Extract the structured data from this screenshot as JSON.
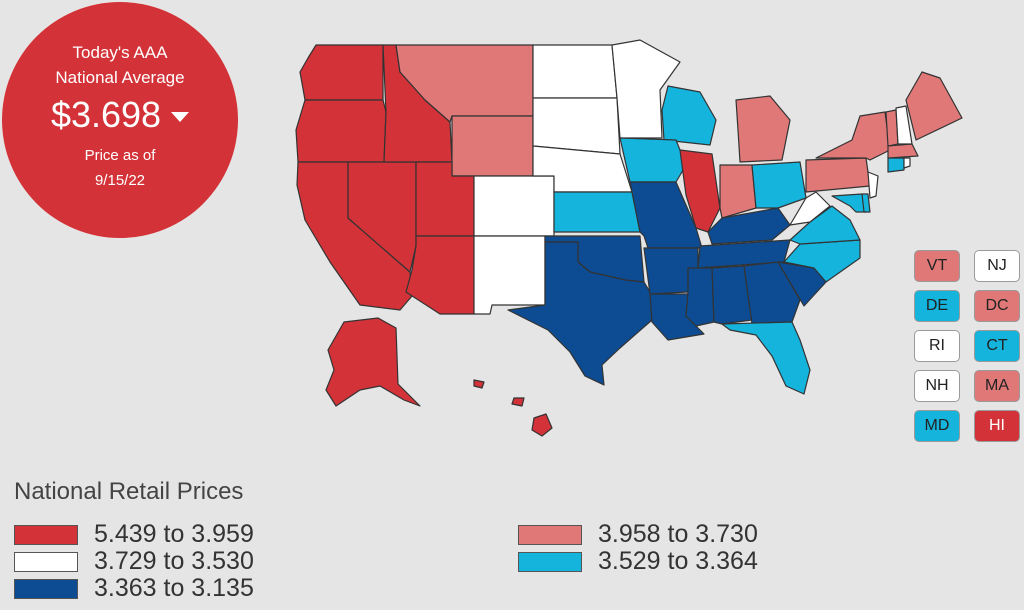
{
  "badge": {
    "line1": "Today's AAA",
    "line2": "National Average",
    "price": "$3.698",
    "trend_icon": "down-arrow-icon",
    "price_as_of_label": "Price as of",
    "date": "9/15/22"
  },
  "colors": {
    "tier1": "#d33338",
    "tier2": "#e07878",
    "tier3": "#ffffff",
    "tier4": "#14b4dd",
    "tier5": "#0d4c92"
  },
  "states": [
    {
      "id": "WA",
      "tier": "tier1"
    },
    {
      "id": "OR",
      "tier": "tier1"
    },
    {
      "id": "CA",
      "tier": "tier1"
    },
    {
      "id": "NV",
      "tier": "tier1"
    },
    {
      "id": "ID",
      "tier": "tier1"
    },
    {
      "id": "UT",
      "tier": "tier1"
    },
    {
      "id": "AZ",
      "tier": "tier1"
    },
    {
      "id": "IL",
      "tier": "tier1"
    },
    {
      "id": "AK",
      "tier": "tier1"
    },
    {
      "id": "HI",
      "tier": "tier1"
    },
    {
      "id": "MT",
      "tier": "tier2"
    },
    {
      "id": "WY",
      "tier": "tier2"
    },
    {
      "id": "MI",
      "tier": "tier2"
    },
    {
      "id": "IN",
      "tier": "tier2"
    },
    {
      "id": "NY",
      "tier": "tier2"
    },
    {
      "id": "PA",
      "tier": "tier2"
    },
    {
      "id": "ME",
      "tier": "tier2"
    },
    {
      "id": "VT",
      "tier": "tier2"
    },
    {
      "id": "MA",
      "tier": "tier2"
    },
    {
      "id": "DC",
      "tier": "tier2"
    },
    {
      "id": "ND",
      "tier": "tier3"
    },
    {
      "id": "SD",
      "tier": "tier3"
    },
    {
      "id": "NE",
      "tier": "tier3"
    },
    {
      "id": "CO",
      "tier": "tier3"
    },
    {
      "id": "NM",
      "tier": "tier3"
    },
    {
      "id": "MN",
      "tier": "tier3"
    },
    {
      "id": "WV",
      "tier": "tier3"
    },
    {
      "id": "NH",
      "tier": "tier3"
    },
    {
      "id": "NJ",
      "tier": "tier3"
    },
    {
      "id": "RI",
      "tier": "tier3"
    },
    {
      "id": "WI",
      "tier": "tier4"
    },
    {
      "id": "IA",
      "tier": "tier4"
    },
    {
      "id": "KS",
      "tier": "tier4"
    },
    {
      "id": "OH",
      "tier": "tier4"
    },
    {
      "id": "VA",
      "tier": "tier4"
    },
    {
      "id": "NC",
      "tier": "tier4"
    },
    {
      "id": "FL",
      "tier": "tier4"
    },
    {
      "id": "DE",
      "tier": "tier4"
    },
    {
      "id": "MD",
      "tier": "tier4"
    },
    {
      "id": "CT",
      "tier": "tier4"
    },
    {
      "id": "TX",
      "tier": "tier5"
    },
    {
      "id": "OK",
      "tier": "tier5"
    },
    {
      "id": "MO",
      "tier": "tier5"
    },
    {
      "id": "AR",
      "tier": "tier5"
    },
    {
      "id": "LA",
      "tier": "tier5"
    },
    {
      "id": "MS",
      "tier": "tier5"
    },
    {
      "id": "AL",
      "tier": "tier5"
    },
    {
      "id": "GA",
      "tier": "tier5"
    },
    {
      "id": "SC",
      "tier": "tier5"
    },
    {
      "id": "TN",
      "tier": "tier5"
    },
    {
      "id": "KY",
      "tier": "tier5"
    }
  ],
  "small_states": [
    {
      "label": "VT",
      "tier": "tier2"
    },
    {
      "label": "NJ",
      "tier": "tier3"
    },
    {
      "label": "DE",
      "tier": "tier4"
    },
    {
      "label": "DC",
      "tier": "tier2"
    },
    {
      "label": "RI",
      "tier": "tier3"
    },
    {
      "label": "CT",
      "tier": "tier4"
    },
    {
      "label": "NH",
      "tier": "tier3"
    },
    {
      "label": "MA",
      "tier": "tier2"
    },
    {
      "label": "MD",
      "tier": "tier4"
    },
    {
      "label": "HI",
      "tier": "tier1"
    }
  ],
  "legend": {
    "title": "National Retail Prices",
    "items": [
      {
        "label": "5.439 to 3.959",
        "tier": "tier1"
      },
      {
        "label": "3.729 to 3.530",
        "tier": "tier3"
      },
      {
        "label": "3.363 to 3.135",
        "tier": "tier5"
      },
      {
        "label": "3.958 to 3.730",
        "tier": "tier2"
      },
      {
        "label": "3.529 to 3.364",
        "tier": "tier4"
      }
    ]
  }
}
